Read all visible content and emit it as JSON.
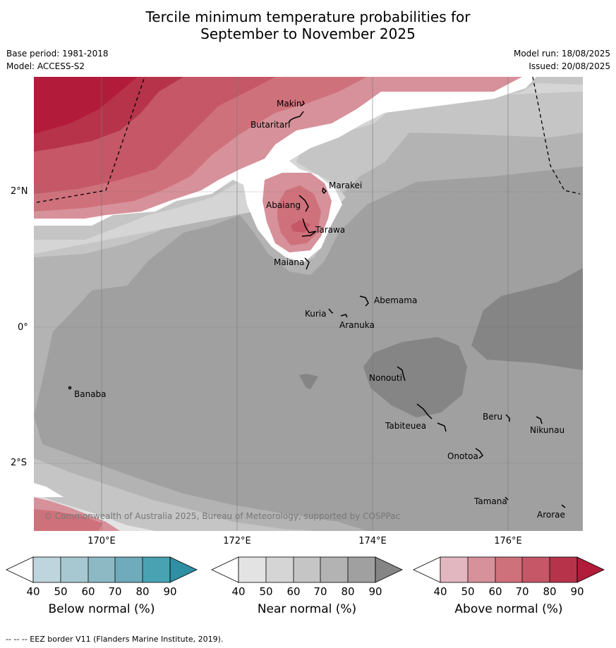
{
  "title_line1": "Tercile minimum temperature probabilities for",
  "title_line2": "September to November 2025",
  "base_period": "Base period: 1981-2018",
  "model": "Model: ACCESS-S2",
  "model_run": "Model run: 18/08/2025",
  "issued": "Issued: 20/08/2025",
  "lat_labels": [
    "2°N",
    "0°",
    "2°S"
  ],
  "lon_labels": [
    "170°E",
    "172°E",
    "174°E",
    "176°E"
  ],
  "islands": [
    "Makin",
    "Butaritari",
    "Marakei",
    "Abaiang",
    "Tarawa",
    "Maiana",
    "Abemama",
    "Kuria",
    "Aranuka",
    "Nonouti",
    "Banaba",
    "Tabiteuea",
    "Beru",
    "Nikunau",
    "Onotoa",
    "Tamana",
    "Arorae"
  ],
  "copyright": "© Commonwealth of Australia 2025, Bureau of Meteorology, supported by COSPPac",
  "colorbars": [
    {
      "label": "Below normal (%)",
      "colors": [
        "#ffffff",
        "#bfd5dd",
        "#a8c8d1",
        "#8db9c5",
        "#6fabba",
        "#48a2b1",
        "#2f8fa3"
      ],
      "ticks": [
        "40",
        "50",
        "60",
        "70",
        "80",
        "90"
      ]
    },
    {
      "label": "Near normal (%)",
      "colors": [
        "#ffffff",
        "#e3e3e3",
        "#d5d5d5",
        "#c5c5c5",
        "#b3b3b3",
        "#a0a0a0",
        "#858585"
      ],
      "ticks": [
        "40",
        "50",
        "60",
        "70",
        "80",
        "90"
      ]
    },
    {
      "label": "Above normal (%)",
      "colors": [
        "#ffffff",
        "#e2b7bf",
        "#d7919a",
        "#cf717b",
        "#c55766",
        "#b7334a",
        "#b31b3a"
      ],
      "ticks": [
        "40",
        "50",
        "60",
        "70",
        "80",
        "90"
      ]
    }
  ],
  "footer": "-- -- -- EEZ border V11 (Flanders Marine Institute, 2019)."
}
